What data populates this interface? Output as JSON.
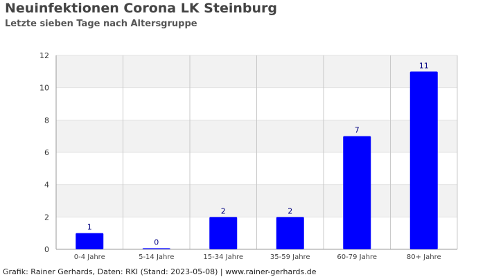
{
  "header": {
    "title": "Neuinfektionen Corona LK Steinburg",
    "subtitle": "Letzte sieben Tage nach Altersgruppe"
  },
  "footer": {
    "credit": "Grafik: Rainer Gerhards, Daten: RKI (Stand: 2023-05-08) | www.rainer-gerhards.de"
  },
  "chart_data": {
    "type": "bar",
    "title": "Neuinfektionen Corona LK Steinburg",
    "subtitle": "Letzte sieben Tage nach Altersgruppe",
    "categories": [
      "0-4 Jahre",
      "5-14 Jahre",
      "15-34 Jahre",
      "35-59 Jahre",
      "60-79 Jahre",
      "80+ Jahre"
    ],
    "values": [
      1,
      0,
      2,
      2,
      7,
      11
    ],
    "ylim": [
      0,
      12
    ],
    "yticks": [
      0,
      2,
      4,
      6,
      8,
      10,
      12
    ],
    "grid": true,
    "bar_color": "#0000ff",
    "data_label_color": "#000080",
    "band_color": "#f2f2f2"
  }
}
